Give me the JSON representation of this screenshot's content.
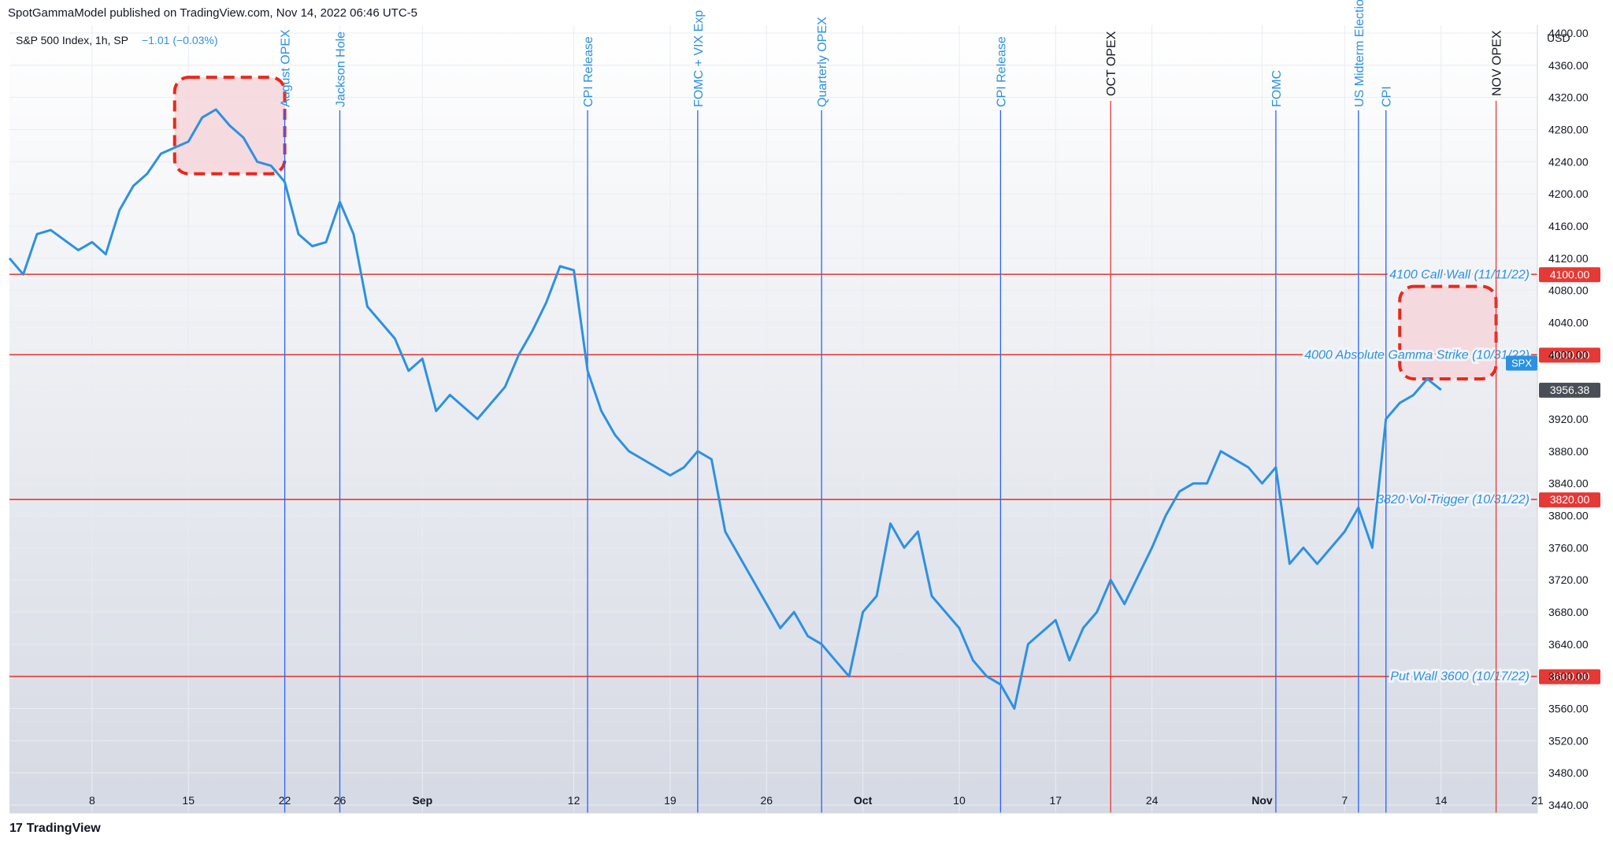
{
  "header": {
    "published": "SpotGammaModel published on TradingView.com, Nov 14, 2022 06:46 UTC-5"
  },
  "legend": {
    "symbol": "S&P 500 Index, 1h, SP",
    "change": "−1.01 (−0.03%)"
  },
  "footer": {
    "brand_mark": "17",
    "brand": "TradingView"
  },
  "colors": {
    "series": "#2d91e0",
    "level_line": "#e53935",
    "event_line_blue": "#2962ff",
    "event_line_red": "#e53935",
    "event_label_blue": "#2d91e0",
    "highlight_fill": "#f5d5da",
    "highlight_border": "#e8291c",
    "axis_text": "#131722",
    "grid": "#e8ecf2"
  },
  "chart_data": {
    "type": "line",
    "title": "S&P 500 Index, 1h, SP",
    "xlabel": "",
    "ylabel": "USD",
    "ylim": [
      3440,
      4400
    ],
    "x_range": [
      "2022-08-02",
      "2022-11-21"
    ],
    "y_ticks": [
      3440,
      3480,
      3520,
      3560,
      3600,
      3640,
      3680,
      3720,
      3760,
      3800,
      3840,
      3880,
      3920,
      3960,
      4000,
      4040,
      4080,
      4120,
      4160,
      4200,
      4240,
      4280,
      4320,
      4360,
      4400
    ],
    "y_tick_labels": [
      "3440.00",
      "3480.00",
      "3520.00",
      "3560.00",
      "3600.00",
      "3640.00",
      "3680.00",
      "3720.00",
      "3760.00",
      "3800.00",
      "3840.00",
      "3880.00",
      "3920.00",
      "3960.00",
      "4000.00",
      "4040.00",
      "4080.00",
      "4120.00",
      "4160.00",
      "4200.00",
      "4240.00",
      "4280.00",
      "4320.00",
      "4360.00",
      "4400.00"
    ],
    "x_ticks": [
      {
        "date": "2022-08-08",
        "label": "8",
        "bold": false
      },
      {
        "date": "2022-08-15",
        "label": "15",
        "bold": false
      },
      {
        "date": "2022-08-22",
        "label": "22",
        "bold": false
      },
      {
        "date": "2022-08-26",
        "label": "26",
        "bold": false
      },
      {
        "date": "2022-09-01",
        "label": "Sep",
        "bold": true
      },
      {
        "date": "2022-09-12",
        "label": "12",
        "bold": false
      },
      {
        "date": "2022-09-19",
        "label": "19",
        "bold": false
      },
      {
        "date": "2022-09-26",
        "label": "26",
        "bold": false
      },
      {
        "date": "2022-10-03",
        "label": "Oct",
        "bold": true
      },
      {
        "date": "2022-10-10",
        "label": "10",
        "bold": false
      },
      {
        "date": "2022-10-17",
        "label": "17",
        "bold": false
      },
      {
        "date": "2022-10-24",
        "label": "24",
        "bold": false
      },
      {
        "date": "2022-11-01",
        "label": "Nov",
        "bold": true
      },
      {
        "date": "2022-11-07",
        "label": "7",
        "bold": false
      },
      {
        "date": "2022-11-14",
        "label": "14",
        "bold": false
      },
      {
        "date": "2022-11-21",
        "label": "21",
        "bold": false
      }
    ],
    "series": [
      {
        "x": [
          "2022-08-02",
          "2022-08-03",
          "2022-08-04",
          "2022-08-05",
          "2022-08-07",
          "2022-08-08",
          "2022-08-09",
          "2022-08-10",
          "2022-08-11",
          "2022-08-12",
          "2022-08-13",
          "2022-08-15",
          "2022-08-16",
          "2022-08-17",
          "2022-08-18",
          "2022-08-19",
          "2022-08-20",
          "2022-08-21",
          "2022-08-22",
          "2022-08-23",
          "2022-08-24",
          "2022-08-25",
          "2022-08-26",
          "2022-08-27",
          "2022-08-28",
          "2022-08-30",
          "2022-08-31",
          "2022-09-01",
          "2022-09-02",
          "2022-09-03",
          "2022-09-05",
          "2022-09-07",
          "2022-09-08",
          "2022-09-09",
          "2022-09-10",
          "2022-09-11",
          "2022-09-12",
          "2022-09-13",
          "2022-09-14",
          "2022-09-15",
          "2022-09-16",
          "2022-09-17",
          "2022-09-19",
          "2022-09-20",
          "2022-09-21",
          "2022-09-22",
          "2022-09-23",
          "2022-09-24",
          "2022-09-26",
          "2022-09-27",
          "2022-09-28",
          "2022-09-29",
          "2022-09-30",
          "2022-10-01",
          "2022-10-02",
          "2022-10-03",
          "2022-10-04",
          "2022-10-05",
          "2022-10-06",
          "2022-10-07",
          "2022-10-08",
          "2022-10-10",
          "2022-10-11",
          "2022-10-12",
          "2022-10-13",
          "2022-10-14",
          "2022-10-15",
          "2022-10-17",
          "2022-10-18",
          "2022-10-19",
          "2022-10-20",
          "2022-10-21",
          "2022-10-22",
          "2022-10-24",
          "2022-10-25",
          "2022-10-26",
          "2022-10-27",
          "2022-10-28",
          "2022-10-29",
          "2022-10-31",
          "2022-11-01",
          "2022-11-02",
          "2022-11-03",
          "2022-11-04",
          "2022-11-05",
          "2022-11-07",
          "2022-11-08",
          "2022-11-09",
          "2022-11-10",
          "2022-11-11",
          "2022-11-12",
          "2022-11-13",
          "2022-11-14"
        ],
        "values": [
          4120,
          4100,
          4150,
          4155,
          4130,
          4140,
          4125,
          4180,
          4210,
          4225,
          4250,
          4265,
          4295,
          4305,
          4285,
          4270,
          4240,
          4235,
          4215,
          4150,
          4135,
          4140,
          4190,
          4150,
          4060,
          4020,
          3980,
          3995,
          3930,
          3950,
          3920,
          3960,
          4000,
          4030,
          4065,
          4110,
          4105,
          3980,
          3930,
          3900,
          3880,
          3870,
          3850,
          3860,
          3880,
          3870,
          3780,
          3750,
          3690,
          3660,
          3680,
          3650,
          3640,
          3620,
          3600,
          3680,
          3700,
          3790,
          3760,
          3780,
          3700,
          3660,
          3620,
          3600,
          3590,
          3560,
          3640,
          3670,
          3620,
          3660,
          3680,
          3720,
          3690,
          3760,
          3800,
          3830,
          3840,
          3840,
          3880,
          3860,
          3840,
          3860,
          3740,
          3760,
          3740,
          3780,
          3810,
          3760,
          3920,
          3940,
          3950,
          3970,
          3956.38
        ]
      }
    ],
    "levels": [
      {
        "value": 4100,
        "label": "4100 Call Wall (11/11/22)",
        "price_label": "4100.00"
      },
      {
        "value": 4000,
        "label": "4000 Absolute Gamma Strike (10/31/22)",
        "price_label": "4000.00"
      },
      {
        "value": 3820,
        "label": "3820 Vol Trigger (10/31/22)",
        "price_label": "3820.00"
      },
      {
        "value": 3600,
        "label": "Put Wall 3600 (10/17/22)",
        "price_label": "3600.00"
      }
    ],
    "events": [
      {
        "date": "2022-08-22",
        "label": "August OPEX",
        "kind": "blue"
      },
      {
        "date": "2022-08-26",
        "label": "Jackson Hole",
        "kind": "blue"
      },
      {
        "date": "2022-09-13",
        "label": "CPI Release",
        "kind": "blue"
      },
      {
        "date": "2022-09-21",
        "label": "FOMC + VIX Exp",
        "kind": "blue"
      },
      {
        "date": "2022-09-30",
        "label": "Quarterly OPEX",
        "kind": "blue"
      },
      {
        "date": "2022-10-13",
        "label": "CPI Release",
        "kind": "blue"
      },
      {
        "date": "2022-10-21",
        "label": "OCT OPEX",
        "kind": "red"
      },
      {
        "date": "2022-11-02",
        "label": "FOMC",
        "kind": "blue"
      },
      {
        "date": "2022-11-08",
        "label": "US Midterm Elections",
        "kind": "blue"
      },
      {
        "date": "2022-11-10",
        "label": "CPI",
        "kind": "blue"
      },
      {
        "date": "2022-11-18",
        "label": "NOV OPEX",
        "kind": "red"
      }
    ],
    "highlights": [
      {
        "x0": "2022-08-14",
        "x1": "2022-08-22",
        "y0": 4225,
        "y1": 4345
      },
      {
        "x0": "2022-11-11",
        "x1": "2022-11-18",
        "y0": 3970,
        "y1": 4085
      }
    ],
    "price_tags": [
      {
        "label": "SPX",
        "value": 3990
      },
      {
        "label": "3956.38",
        "value": 3956.38
      }
    ],
    "grid": true
  }
}
